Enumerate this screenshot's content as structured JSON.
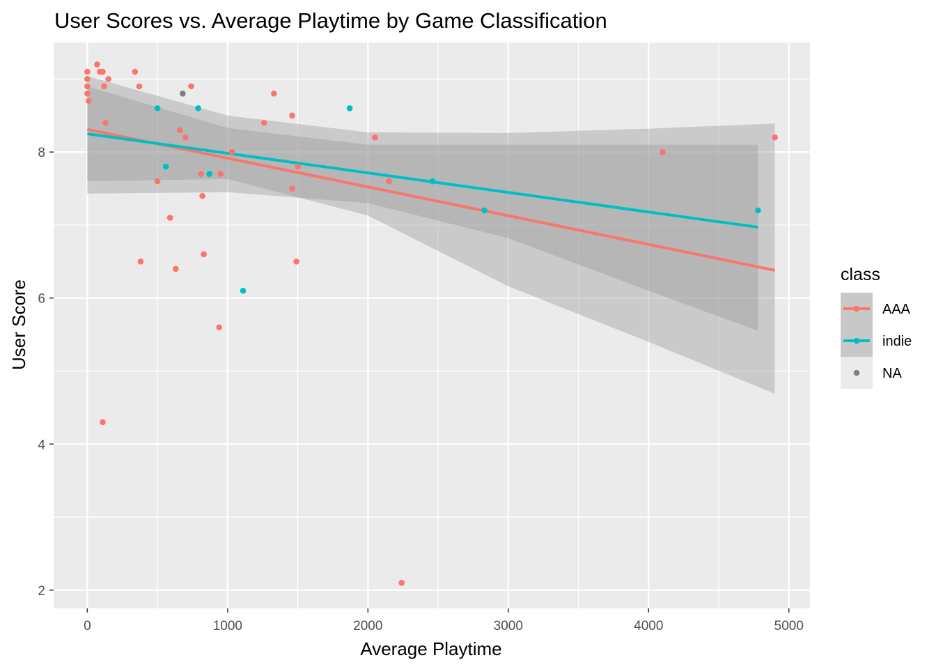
{
  "chart_data": {
    "type": "scatter",
    "title": "User Scores vs. Average Playtime by Game Classification",
    "xlabel": "Average Playtime",
    "ylabel": "User Score",
    "xlim": [
      -240,
      5150
    ],
    "ylim": [
      1.75,
      9.5
    ],
    "x_ticks": [
      0,
      1000,
      2000,
      3000,
      4000,
      5000
    ],
    "x_tick_labels": [
      "0",
      "1000",
      "2000",
      "3000",
      "4000",
      "5000"
    ],
    "y_ticks": [
      2,
      4,
      6,
      8
    ],
    "y_tick_labels": [
      "2",
      "4",
      "6",
      "8"
    ],
    "grid": true,
    "legend": {
      "title": "class",
      "placement": "right",
      "entries": [
        {
          "label": "AAA",
          "color": "#F8766D",
          "has_line": true
        },
        {
          "label": "indie",
          "color": "#00BFC4",
          "has_line": true
        },
        {
          "label": "NA",
          "color": "#7F7F7F",
          "has_line": false
        }
      ]
    },
    "panel_background": "#EBEBEB",
    "band_color": "#999999",
    "series": [
      {
        "name": "AAA",
        "color": "#F8766D",
        "points": [
          {
            "x": 0,
            "y": 9.1
          },
          {
            "x": 0,
            "y": 9.0
          },
          {
            "x": 0,
            "y": 8.9
          },
          {
            "x": 0,
            "y": 8.8
          },
          {
            "x": 10,
            "y": 8.7
          },
          {
            "x": 70,
            "y": 9.2
          },
          {
            "x": 90,
            "y": 9.1
          },
          {
            "x": 110,
            "y": 9.1
          },
          {
            "x": 120,
            "y": 8.9
          },
          {
            "x": 130,
            "y": 8.4
          },
          {
            "x": 150,
            "y": 9.0
          },
          {
            "x": 110,
            "y": 4.3
          },
          {
            "x": 340,
            "y": 9.1
          },
          {
            "x": 370,
            "y": 8.9
          },
          {
            "x": 380,
            "y": 6.5
          },
          {
            "x": 500,
            "y": 7.6
          },
          {
            "x": 590,
            "y": 7.1
          },
          {
            "x": 630,
            "y": 6.4
          },
          {
            "x": 660,
            "y": 8.3
          },
          {
            "x": 700,
            "y": 8.2
          },
          {
            "x": 740,
            "y": 8.9
          },
          {
            "x": 810,
            "y": 7.7
          },
          {
            "x": 820,
            "y": 7.4
          },
          {
            "x": 830,
            "y": 6.6
          },
          {
            "x": 940,
            "y": 5.6
          },
          {
            "x": 950,
            "y": 7.7
          },
          {
            "x": 1030,
            "y": 8.0
          },
          {
            "x": 1260,
            "y": 8.4
          },
          {
            "x": 1330,
            "y": 8.8
          },
          {
            "x": 1460,
            "y": 8.5
          },
          {
            "x": 1460,
            "y": 7.5
          },
          {
            "x": 1490,
            "y": 6.5
          },
          {
            "x": 1500,
            "y": 7.8
          },
          {
            "x": 2050,
            "y": 8.2
          },
          {
            "x": 2150,
            "y": 7.6
          },
          {
            "x": 2240,
            "y": 2.1
          },
          {
            "x": 4100,
            "y": 8.0
          },
          {
            "x": 4900,
            "y": 8.2
          }
        ],
        "fit": {
          "x": [
            0,
            4900
          ],
          "y": [
            8.31,
            6.38
          ]
        },
        "band": {
          "x": [
            0,
            1000,
            2000,
            3000,
            4000,
            4900
          ],
          "upper": [
            9.04,
            8.5,
            8.27,
            8.26,
            8.32,
            8.39
          ],
          "lower": [
            7.6,
            7.63,
            7.13,
            6.16,
            5.4,
            4.69
          ]
        }
      },
      {
        "name": "indie",
        "color": "#00BFC4",
        "points": [
          {
            "x": 500,
            "y": 8.6
          },
          {
            "x": 560,
            "y": 7.8
          },
          {
            "x": 790,
            "y": 8.6
          },
          {
            "x": 870,
            "y": 7.7
          },
          {
            "x": 1110,
            "y": 6.1
          },
          {
            "x": 1870,
            "y": 8.6
          },
          {
            "x": 2460,
            "y": 7.6
          },
          {
            "x": 2830,
            "y": 7.2
          },
          {
            "x": 4780,
            "y": 7.2
          }
        ],
        "fit": {
          "x": [
            0,
            4780
          ],
          "y": [
            8.25,
            6.97
          ]
        },
        "band": {
          "x": [
            0,
            1000,
            2000,
            3000,
            4000,
            4780
          ],
          "upper": [
            8.9,
            8.33,
            8.1,
            8.1,
            8.1,
            8.1
          ],
          "lower": [
            7.43,
            7.45,
            7.3,
            6.82,
            6.1,
            5.55
          ]
        }
      },
      {
        "name": "NA",
        "color": "#7F7F7F",
        "points": [
          {
            "x": 680,
            "y": 8.8
          }
        ]
      }
    ]
  }
}
